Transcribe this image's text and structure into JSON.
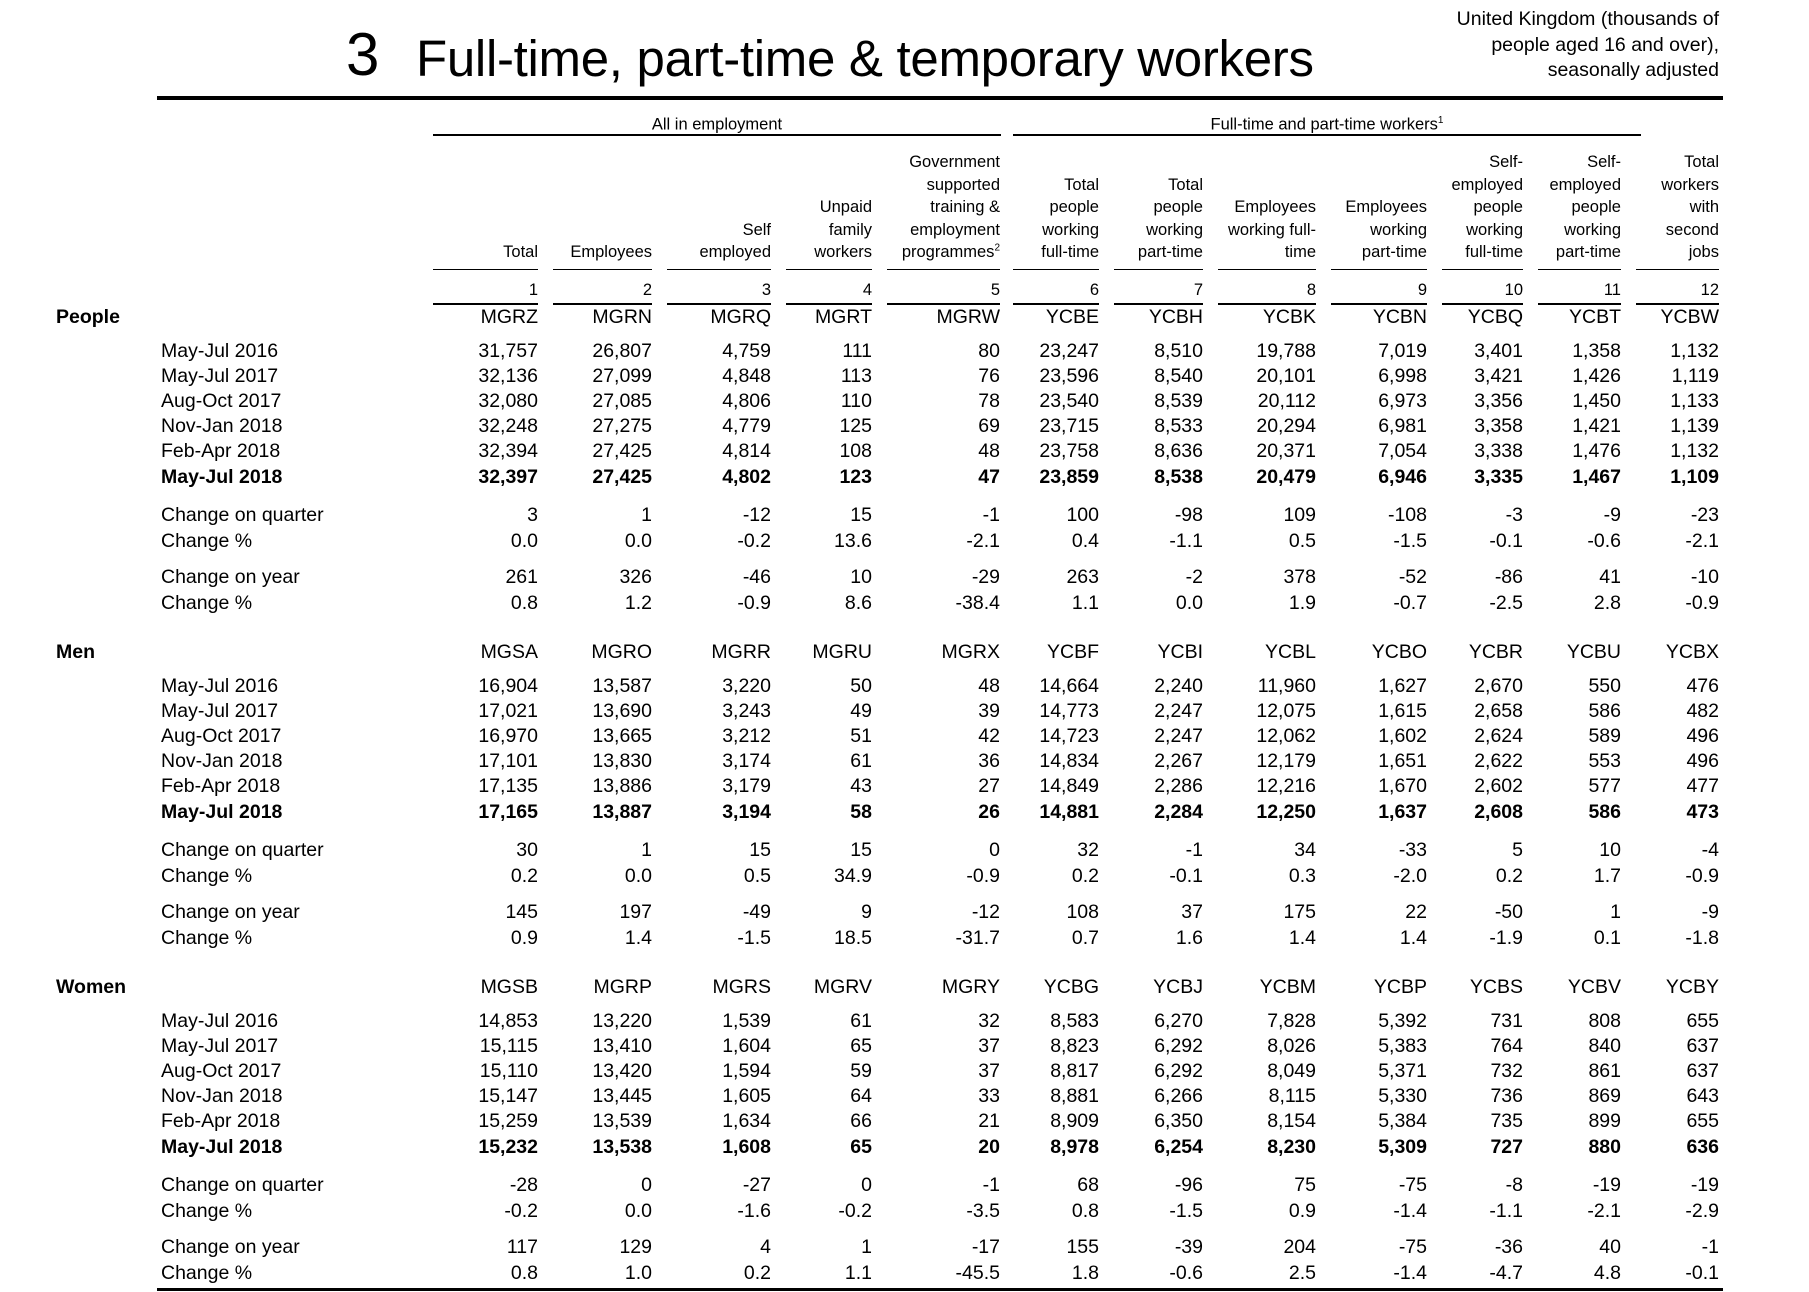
{
  "title": {
    "number": "3",
    "text": "Full-time, part-time & temporary workers"
  },
  "unit_note": [
    "United Kingdom (thousands of",
    "people aged 16 and over),",
    "seasonally adjusted"
  ],
  "groups": [
    {
      "label": "All in employment",
      "sup": ""
    },
    {
      "label": "Full-time and part-time workers",
      "sup": "1"
    }
  ],
  "columns": [
    {
      "num": "1",
      "header": [
        "Total"
      ]
    },
    {
      "num": "2",
      "header": [
        "Employees"
      ]
    },
    {
      "num": "3",
      "header": [
        "Self",
        "employed"
      ]
    },
    {
      "num": "4",
      "header": [
        "Unpaid",
        "family",
        "workers"
      ]
    },
    {
      "num": "5",
      "header": [
        "Government",
        "supported",
        "training &",
        "employment",
        "programmes"
      ],
      "sup": "2"
    },
    {
      "num": "6",
      "header": [
        "Total",
        "people",
        "working",
        "full-time"
      ]
    },
    {
      "num": "7",
      "header": [
        "Total",
        "people",
        "working",
        "part-time"
      ]
    },
    {
      "num": "8",
      "header": [
        "Employees",
        "working full-",
        "time"
      ]
    },
    {
      "num": "9",
      "header": [
        "Employees",
        "working",
        "part-time"
      ]
    },
    {
      "num": "10",
      "header": [
        "Self-",
        "employed",
        "people",
        "working",
        "full-time"
      ]
    },
    {
      "num": "11",
      "header": [
        "Self-",
        "employed",
        "people",
        "working",
        "part-time"
      ]
    },
    {
      "num": "12",
      "header": [
        "Total",
        "workers",
        "with",
        "second",
        "jobs"
      ]
    }
  ],
  "sections": [
    {
      "label": "People",
      "codes": [
        "MGRZ",
        "MGRN",
        "MGRQ",
        "MGRT",
        "MGRW",
        "YCBE",
        "YCBH",
        "YCBK",
        "YCBN",
        "YCBQ",
        "YCBT",
        "YCBW"
      ],
      "rows": [
        {
          "label": "May-Jul 2016",
          "bold": false,
          "values": [
            "31,757",
            "26,807",
            "4,759",
            "111",
            "80",
            "23,247",
            "8,510",
            "19,788",
            "7,019",
            "3,401",
            "1,358",
            "1,132"
          ]
        },
        {
          "label": "May-Jul 2017",
          "bold": false,
          "values": [
            "32,136",
            "27,099",
            "4,848",
            "113",
            "76",
            "23,596",
            "8,540",
            "20,101",
            "6,998",
            "3,421",
            "1,426",
            "1,119"
          ]
        },
        {
          "label": "Aug-Oct 2017",
          "bold": false,
          "values": [
            "32,080",
            "27,085",
            "4,806",
            "110",
            "78",
            "23,540",
            "8,539",
            "20,112",
            "6,973",
            "3,356",
            "1,450",
            "1,133"
          ]
        },
        {
          "label": "Nov-Jan 2018",
          "bold": false,
          "values": [
            "32,248",
            "27,275",
            "4,779",
            "125",
            "69",
            "23,715",
            "8,533",
            "20,294",
            "6,981",
            "3,358",
            "1,421",
            "1,139"
          ]
        },
        {
          "label": "Feb-Apr 2018",
          "bold": false,
          "values": [
            "32,394",
            "27,425",
            "4,814",
            "108",
            "48",
            "23,758",
            "8,636",
            "20,371",
            "7,054",
            "3,338",
            "1,476",
            "1,132"
          ]
        },
        {
          "label": "May-Jul 2018",
          "bold": true,
          "values": [
            "32,397",
            "27,425",
            "4,802",
            "123",
            "47",
            "23,859",
            "8,538",
            "20,479",
            "6,946",
            "3,335",
            "1,467",
            "1,109"
          ]
        }
      ],
      "changes": [
        {
          "label": "Change on quarter",
          "values": [
            "3",
            "1",
            "-12",
            "15",
            "-1",
            "100",
            "-98",
            "109",
            "-108",
            "-3",
            "-9",
            "-23"
          ]
        },
        {
          "label": "Change %",
          "values": [
            "0.0",
            "0.0",
            "-0.2",
            "13.6",
            "-2.1",
            "0.4",
            "-1.1",
            "0.5",
            "-1.5",
            "-0.1",
            "-0.6",
            "-2.1"
          ]
        },
        {
          "label": "Change on year",
          "values": [
            "261",
            "326",
            "-46",
            "10",
            "-29",
            "263",
            "-2",
            "378",
            "-52",
            "-86",
            "41",
            "-10"
          ]
        },
        {
          "label": "Change %",
          "values": [
            "0.8",
            "1.2",
            "-0.9",
            "8.6",
            "-38.4",
            "1.1",
            "0.0",
            "1.9",
            "-0.7",
            "-2.5",
            "2.8",
            "-0.9"
          ]
        }
      ]
    },
    {
      "label": "Men",
      "codes": [
        "MGSA",
        "MGRO",
        "MGRR",
        "MGRU",
        "MGRX",
        "YCBF",
        "YCBI",
        "YCBL",
        "YCBO",
        "YCBR",
        "YCBU",
        "YCBX"
      ],
      "rows": [
        {
          "label": "May-Jul 2016",
          "bold": false,
          "values": [
            "16,904",
            "13,587",
            "3,220",
            "50",
            "48",
            "14,664",
            "2,240",
            "11,960",
            "1,627",
            "2,670",
            "550",
            "476"
          ]
        },
        {
          "label": "May-Jul 2017",
          "bold": false,
          "values": [
            "17,021",
            "13,690",
            "3,243",
            "49",
            "39",
            "14,773",
            "2,247",
            "12,075",
            "1,615",
            "2,658",
            "586",
            "482"
          ]
        },
        {
          "label": "Aug-Oct 2017",
          "bold": false,
          "values": [
            "16,970",
            "13,665",
            "3,212",
            "51",
            "42",
            "14,723",
            "2,247",
            "12,062",
            "1,602",
            "2,624",
            "589",
            "496"
          ]
        },
        {
          "label": "Nov-Jan 2018",
          "bold": false,
          "values": [
            "17,101",
            "13,830",
            "3,174",
            "61",
            "36",
            "14,834",
            "2,267",
            "12,179",
            "1,651",
            "2,622",
            "553",
            "496"
          ]
        },
        {
          "label": "Feb-Apr 2018",
          "bold": false,
          "values": [
            "17,135",
            "13,886",
            "3,179",
            "43",
            "27",
            "14,849",
            "2,286",
            "12,216",
            "1,670",
            "2,602",
            "577",
            "477"
          ]
        },
        {
          "label": "May-Jul 2018",
          "bold": true,
          "values": [
            "17,165",
            "13,887",
            "3,194",
            "58",
            "26",
            "14,881",
            "2,284",
            "12,250",
            "1,637",
            "2,608",
            "586",
            "473"
          ]
        }
      ],
      "changes": [
        {
          "label": "Change on quarter",
          "values": [
            "30",
            "1",
            "15",
            "15",
            "0",
            "32",
            "-1",
            "34",
            "-33",
            "5",
            "10",
            "-4"
          ]
        },
        {
          "label": "Change %",
          "values": [
            "0.2",
            "0.0",
            "0.5",
            "34.9",
            "-0.9",
            "0.2",
            "-0.1",
            "0.3",
            "-2.0",
            "0.2",
            "1.7",
            "-0.9"
          ]
        },
        {
          "label": "Change on year",
          "values": [
            "145",
            "197",
            "-49",
            "9",
            "-12",
            "108",
            "37",
            "175",
            "22",
            "-50",
            "1",
            "-9"
          ]
        },
        {
          "label": "Change %",
          "values": [
            "0.9",
            "1.4",
            "-1.5",
            "18.5",
            "-31.7",
            "0.7",
            "1.6",
            "1.4",
            "1.4",
            "-1.9",
            "0.1",
            "-1.8"
          ]
        }
      ]
    },
    {
      "label": "Women",
      "codes": [
        "MGSB",
        "MGRP",
        "MGRS",
        "MGRV",
        "MGRY",
        "YCBG",
        "YCBJ",
        "YCBM",
        "YCBP",
        "YCBS",
        "YCBV",
        "YCBY"
      ],
      "rows": [
        {
          "label": "May-Jul 2016",
          "bold": false,
          "values": [
            "14,853",
            "13,220",
            "1,539",
            "61",
            "32",
            "8,583",
            "6,270",
            "7,828",
            "5,392",
            "731",
            "808",
            "655"
          ]
        },
        {
          "label": "May-Jul 2017",
          "bold": false,
          "values": [
            "15,115",
            "13,410",
            "1,604",
            "65",
            "37",
            "8,823",
            "6,292",
            "8,026",
            "5,383",
            "764",
            "840",
            "637"
          ]
        },
        {
          "label": "Aug-Oct 2017",
          "bold": false,
          "values": [
            "15,110",
            "13,420",
            "1,594",
            "59",
            "37",
            "8,817",
            "6,292",
            "8,049",
            "5,371",
            "732",
            "861",
            "637"
          ]
        },
        {
          "label": "Nov-Jan 2018",
          "bold": false,
          "values": [
            "15,147",
            "13,445",
            "1,605",
            "64",
            "33",
            "8,881",
            "6,266",
            "8,115",
            "5,330",
            "736",
            "869",
            "643"
          ]
        },
        {
          "label": "Feb-Apr 2018",
          "bold": false,
          "values": [
            "15,259",
            "13,539",
            "1,634",
            "66",
            "21",
            "8,909",
            "6,350",
            "8,154",
            "5,384",
            "735",
            "899",
            "655"
          ]
        },
        {
          "label": "May-Jul 2018",
          "bold": true,
          "values": [
            "15,232",
            "13,538",
            "1,608",
            "65",
            "20",
            "8,978",
            "6,254",
            "8,230",
            "5,309",
            "727",
            "880",
            "636"
          ]
        }
      ],
      "changes": [
        {
          "label": "Change on quarter",
          "values": [
            "-28",
            "0",
            "-27",
            "0",
            "-1",
            "68",
            "-96",
            "75",
            "-75",
            "-8",
            "-19",
            "-19"
          ]
        },
        {
          "label": "Change %",
          "values": [
            "-0.2",
            "0.0",
            "-1.6",
            "-0.2",
            "-3.5",
            "0.8",
            "-1.5",
            "0.9",
            "-1.4",
            "-1.1",
            "-2.1",
            "-2.9"
          ]
        },
        {
          "label": "Change on year",
          "values": [
            "117",
            "129",
            "4",
            "1",
            "-17",
            "155",
            "-39",
            "204",
            "-75",
            "-36",
            "40",
            "-1"
          ]
        },
        {
          "label": "Change %",
          "values": [
            "0.8",
            "1.0",
            "0.2",
            "1.1",
            "-45.5",
            "1.8",
            "-0.6",
            "2.5",
            "-1.4",
            "-4.7",
            "4.8",
            "-0.1"
          ]
        }
      ]
    }
  ]
}
